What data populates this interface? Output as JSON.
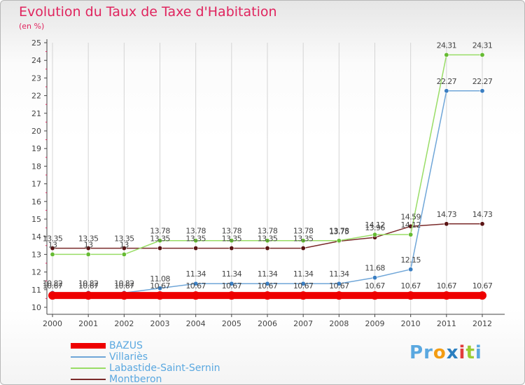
{
  "title": "Evolution du Taux de Taxe d'Habitation",
  "subtitle": "(en %)",
  "logo": {
    "text": "Proxiti",
    "letters": [
      "P",
      "r",
      "o",
      "x",
      "i",
      "t",
      "i"
    ],
    "colors": [
      "#5aa8e0",
      "#5aa8e0",
      "#f39c12",
      "#2a7fc0",
      "#e23c3c",
      "#9bcc33",
      "#5aa8e0"
    ]
  },
  "colors": {
    "title": "#e0245e",
    "axis": "#444444",
    "grid": "#d4d4d4",
    "legend_text": "#5aa8e0",
    "value_labels": "#444444"
  },
  "chart_data": {
    "type": "line",
    "title": "Evolution du Taux de Taxe d'Habitation",
    "subtitle": "(en %)",
    "xlabel": "",
    "ylabel": "",
    "x": [
      2000,
      2001,
      2002,
      2003,
      2004,
      2005,
      2006,
      2007,
      2008,
      2009,
      2010,
      2011,
      2012
    ],
    "ylim": [
      10,
      25
    ],
    "yticks": [
      10,
      11,
      12,
      13,
      14,
      15,
      16,
      17,
      18,
      19,
      20,
      21,
      22,
      23,
      24,
      25
    ],
    "grid": "vertical",
    "legend_position": "bottom-left",
    "series": [
      {
        "name": "BAZUS",
        "color": "#ee0000",
        "line_width": 10,
        "values": [
          10.67,
          10.67,
          10.67,
          10.67,
          10.67,
          10.67,
          10.67,
          10.67,
          10.67,
          10.67,
          10.67,
          10.67,
          10.67
        ],
        "labels": [
          "10.67",
          "10.67",
          "10.67",
          "10.67",
          "10.67",
          "10.67",
          "10.67",
          "10.67",
          "10.67",
          "10.67",
          "10.67",
          "10.67",
          "10.67"
        ]
      },
      {
        "name": "Villariès",
        "color": "#6fa6d8",
        "marker": "#3a7ec2",
        "line_width": 1.5,
        "values": [
          10.82,
          10.82,
          10.82,
          11.08,
          11.34,
          11.34,
          11.34,
          11.34,
          11.34,
          11.68,
          12.15,
          22.27,
          22.27
        ],
        "labels": [
          "10.82",
          "10.82",
          "10.82",
          "11.08",
          "11.34",
          "11.34",
          "11.34",
          "11.34",
          "11.34",
          "11.68",
          "12.15",
          "22.27",
          "22.27"
        ]
      },
      {
        "name": "Labastide-Saint-Sernin",
        "color": "#99dd66",
        "marker": "#66bb33",
        "line_width": 1.5,
        "values": [
          13.0,
          13.0,
          13.0,
          13.78,
          13.78,
          13.78,
          13.78,
          13.78,
          13.78,
          14.12,
          14.12,
          24.31,
          24.31
        ],
        "labels": [
          "13",
          "13",
          "13",
          "13.78",
          "13.78",
          "13.78",
          "13.78",
          "13.78",
          "13.78",
          "14.12",
          "14.12",
          "24.31",
          "24.31"
        ]
      },
      {
        "name": "Montberon",
        "color": "#7a2a2a",
        "marker": "#5a1414",
        "line_width": 1.5,
        "values": [
          13.35,
          13.35,
          13.35,
          13.35,
          13.35,
          13.35,
          13.35,
          13.35,
          13.75,
          13.96,
          14.59,
          14.73,
          14.73
        ],
        "labels": [
          "13.35",
          "13.35",
          "13.35",
          "13.35",
          "13.35",
          "13.35",
          "13.35",
          "13.35",
          "13.75",
          "13.96",
          "14.59",
          "14.73",
          "14.73"
        ]
      }
    ]
  }
}
